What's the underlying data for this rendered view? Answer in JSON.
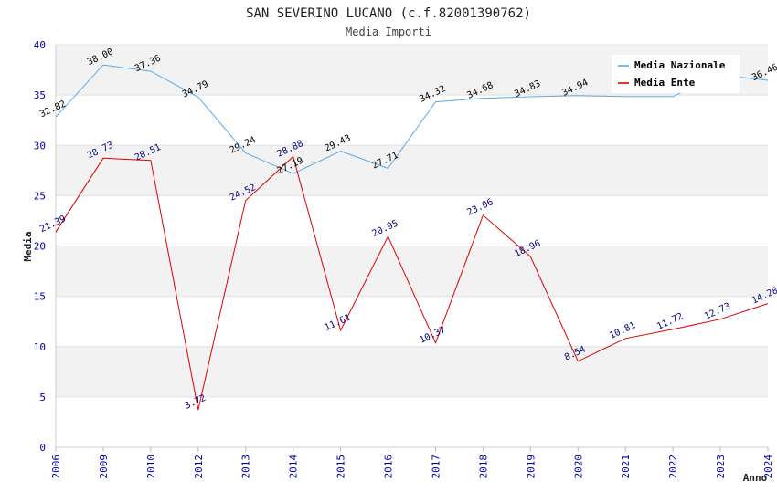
{
  "chart_data": {
    "type": "line",
    "title": "SAN SEVERINO LUCANO (c.f.82001390762)",
    "subtitle": "Media Importi",
    "xlabel": "Anno",
    "ylabel": "Media",
    "ylim": [
      0,
      40
    ],
    "yticks": [
      0,
      5,
      10,
      15,
      20,
      25,
      30,
      35,
      40
    ],
    "categories": [
      "2006",
      "2009",
      "2010",
      "2012",
      "2013",
      "2014",
      "2015",
      "2016",
      "2017",
      "2018",
      "2019",
      "2020",
      "2021",
      "2022",
      "2023",
      "2024"
    ],
    "series": [
      {
        "name": "Media Nazionale",
        "color": "#5aa9e6",
        "values": [
          32.82,
          38.0,
          37.36,
          34.79,
          29.24,
          27.19,
          29.43,
          27.71,
          34.32,
          34.68,
          34.83,
          34.94,
          34.85,
          34.85,
          37.0,
          36.46
        ],
        "labels": [
          "32.82",
          "38.00",
          "37.36",
          "34.79",
          "29.24",
          "27.19",
          "29.43",
          "27.71",
          "34.32",
          "34.68",
          "34.83",
          "34.94",
          "",
          "",
          "",
          "36.46"
        ]
      },
      {
        "name": "Media Ente",
        "color": "#dd0000",
        "values": [
          21.39,
          28.73,
          28.51,
          3.72,
          24.52,
          28.88,
          11.61,
          20.95,
          10.37,
          23.06,
          18.96,
          8.54,
          10.81,
          11.72,
          12.73,
          14.28
        ],
        "labels": [
          "21.39",
          "28.73",
          "28.51",
          "3.72",
          "24.52",
          "28.88",
          "11.61",
          "20.95",
          "10.37",
          "23.06",
          "18.96",
          "8.54",
          "10.81",
          "11.72",
          "12.73",
          "14.28"
        ]
      }
    ],
    "legend": "top-right",
    "grid": true
  }
}
